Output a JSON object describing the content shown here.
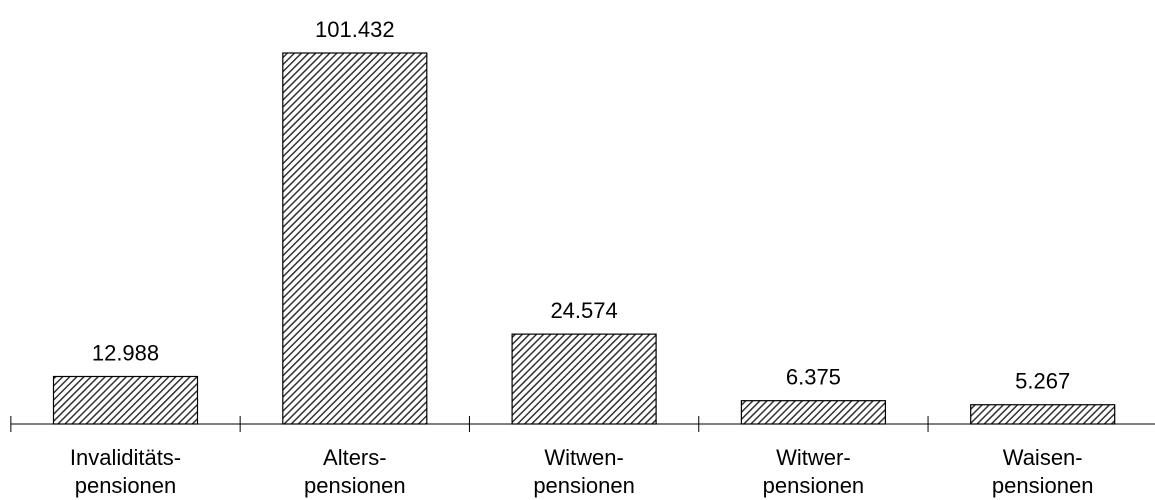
{
  "chart_data": {
    "type": "bar",
    "categories": [
      [
        "Invaliditäts-",
        "pensionen"
      ],
      [
        "Alters-",
        "pensionen"
      ],
      [
        "Witwen-",
        "pensionen"
      ],
      [
        "Witwer-",
        "pensionen"
      ],
      [
        "Waisen-",
        "pensionen"
      ]
    ],
    "values": [
      12988,
      101432,
      24574,
      6375,
      5267
    ],
    "value_labels": [
      "12.988",
      "101.432",
      "24.574",
      "6.375",
      "5.267"
    ],
    "bar_pattern": "diagonal-hatch",
    "colors": {
      "bar_fill": "#ffffff",
      "hatch": "#333333",
      "outline": "#000000",
      "axis": "#000000"
    }
  }
}
